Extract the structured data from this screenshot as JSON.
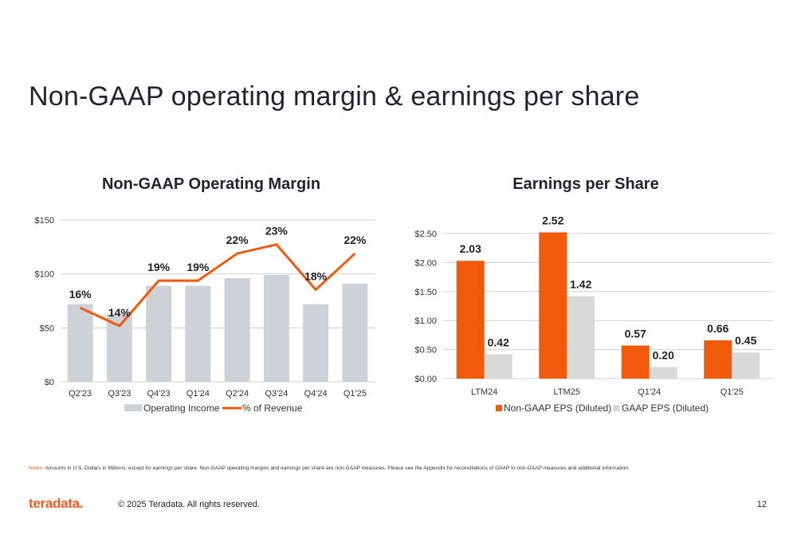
{
  "slide": {
    "title": "Non-GAAP operating margin & earnings per share",
    "notes_prefix": "Notes:",
    "notes": "Amounts in U.S. Dollars in Millions, except for earnings per share. Non-GAAP operating margins and earnings per share are non-GAAP measures. Please see the Appendix for reconciliations of GAAP to non-GAAP measures and additional information.",
    "logo": "teradata.",
    "copyright": "© 2025 Teradata. All rights reserved.",
    "page_number": "12"
  },
  "colors": {
    "orange": "#f15a0a",
    "gray_bar": "#cdd2d8",
    "gaap_bar": "#d9d9d9",
    "grid": "#d0d0d0"
  },
  "chart_data": [
    {
      "type": "bar",
      "title": "Non-GAAP Operating Margin",
      "categories": [
        "Q2'23",
        "Q3'23",
        "Q4'23",
        "Q1'24",
        "Q2'24",
        "Q3'24",
        "Q4'24",
        "Q1'25"
      ],
      "ylim": [
        0,
        150
      ],
      "yticks": [
        0,
        50,
        100,
        150
      ],
      "ytick_labels": [
        "$0",
        "$50",
        "$100",
        "$150"
      ],
      "grid": true,
      "legend_position": "bottom",
      "series": [
        {
          "name": "Operating Income",
          "kind": "bar",
          "values": [
            72,
            63,
            89,
            89,
            96,
            99,
            72,
            91
          ]
        },
        {
          "name": "% of Revenue",
          "kind": "line",
          "values": [
            16,
            14,
            19,
            19,
            22,
            23,
            18,
            22
          ],
          "labels": [
            "16%",
            "14%",
            "19%",
            "19%",
            "22%",
            "23%",
            "18%",
            "22%"
          ]
        }
      ]
    },
    {
      "type": "bar",
      "title": "Earnings per Share",
      "categories": [
        "LTM24",
        "LTM25",
        "Q1'24",
        "Q1'25"
      ],
      "ylim": [
        0,
        2.5
      ],
      "yticks": [
        0,
        0.5,
        1.0,
        1.5,
        2.0,
        2.5
      ],
      "ytick_labels": [
        "$0.00",
        "$0.50",
        "$1.00",
        "$1.50",
        "$2.00",
        "$2.50"
      ],
      "grid": true,
      "legend_position": "bottom",
      "series": [
        {
          "name": "Non-GAAP EPS (Diluted)",
          "values": [
            2.03,
            2.52,
            0.57,
            0.66
          ],
          "labels": [
            "2.03",
            "2.52",
            "0.57",
            "0.66"
          ]
        },
        {
          "name": "GAAP EPS (Diluted)",
          "values": [
            0.42,
            1.42,
            0.2,
            0.45
          ],
          "labels": [
            "0.42",
            "1.42",
            "0.20",
            "0.45"
          ]
        }
      ]
    }
  ]
}
